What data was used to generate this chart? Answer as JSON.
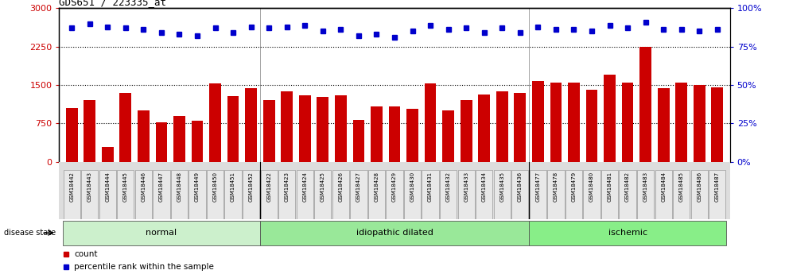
{
  "title": "GDS651 / 223335_at",
  "samples": [
    "GSM18442",
    "GSM18443",
    "GSM18444",
    "GSM18445",
    "GSM18446",
    "GSM18447",
    "GSM18448",
    "GSM18449",
    "GSM18450",
    "GSM18451",
    "GSM18452",
    "GSM18422",
    "GSM18423",
    "GSM18424",
    "GSM18425",
    "GSM18426",
    "GSM18427",
    "GSM18428",
    "GSM18429",
    "GSM18430",
    "GSM18431",
    "GSM18432",
    "GSM18433",
    "GSM18434",
    "GSM18435",
    "GSM18436",
    "GSM18477",
    "GSM18478",
    "GSM18479",
    "GSM18480",
    "GSM18481",
    "GSM18482",
    "GSM18483",
    "GSM18484",
    "GSM18485",
    "GSM18486",
    "GSM18487"
  ],
  "counts": [
    1050,
    1200,
    290,
    1350,
    1000,
    770,
    890,
    800,
    1530,
    1280,
    1430,
    1200,
    1380,
    1300,
    1270,
    1290,
    810,
    1080,
    1080,
    1030,
    1530,
    1010,
    1200,
    1320,
    1380,
    1350,
    1580,
    1540,
    1540,
    1410,
    1700,
    1550,
    2250,
    1430,
    1550,
    1500,
    1450
  ],
  "percentile": [
    87,
    90,
    88,
    87,
    86,
    84,
    83,
    82,
    87,
    84,
    88,
    87,
    88,
    89,
    85,
    86,
    82,
    83,
    81,
    85,
    89,
    86,
    87,
    84,
    87,
    84,
    88,
    86,
    86,
    85,
    89,
    87,
    91,
    86,
    86,
    85,
    86
  ],
  "groups": [
    {
      "label": "normal",
      "start": 0,
      "end": 11
    },
    {
      "label": "idiopathic dilated",
      "start": 11,
      "end": 26
    },
    {
      "label": "ischemic",
      "start": 26,
      "end": 37
    }
  ],
  "bar_color": "#cc0000",
  "dot_color": "#0000cc",
  "left_ylim": [
    0,
    3000
  ],
  "right_ylim": [
    0,
    100
  ],
  "left_yticks": [
    0,
    750,
    1500,
    2250,
    3000
  ],
  "right_yticks": [
    0,
    25,
    50,
    75,
    100
  ],
  "group_colors": [
    "#bbeeaa",
    "#99dd88",
    "#77cc66"
  ],
  "label_bg": "#dddddd"
}
